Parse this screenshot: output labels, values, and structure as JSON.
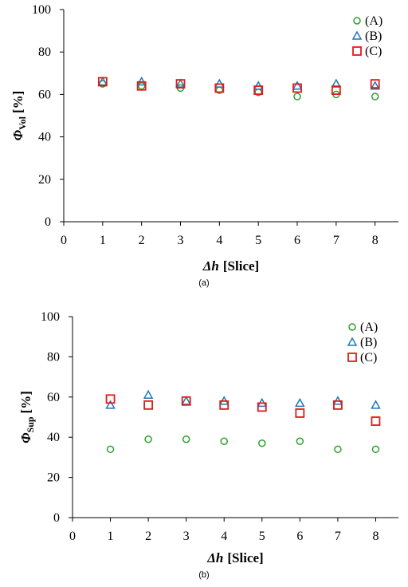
{
  "chart_data": [
    {
      "type": "scatter",
      "panel_label": "(a)",
      "ylabel_symbol": "Φ",
      "ylabel_subscript": "Vol",
      "ylabel_unit": "[%]",
      "xlabel_symbol": "Δh",
      "xlabel_unit": "[Slice]",
      "xlim": [
        0,
        8.6
      ],
      "ylim": [
        0,
        100
      ],
      "xticks": [
        "0",
        "1",
        "2",
        "3",
        "4",
        "5",
        "6",
        "7",
        "8"
      ],
      "yticks": [
        "0",
        "20",
        "40",
        "60",
        "80",
        "100"
      ],
      "grid": false,
      "legend_position": "top-right",
      "x": [
        1,
        2,
        3,
        4,
        5,
        6,
        7,
        8
      ],
      "series": [
        {
          "name": "(A)",
          "marker": "circle",
          "color": "#2ca02c",
          "values": [
            65,
            64,
            63,
            62,
            61,
            59,
            60,
            59
          ]
        },
        {
          "name": "(B)",
          "marker": "triangle",
          "color": "#1f77b4",
          "values": [
            66,
            66,
            65,
            65,
            64,
            64,
            65,
            64
          ]
        },
        {
          "name": "(C)",
          "marker": "square",
          "color": "#e31a1c",
          "values": [
            66,
            64,
            65,
            63,
            62,
            63,
            62,
            65
          ]
        }
      ]
    },
    {
      "type": "scatter",
      "panel_label": "(b)",
      "ylabel_symbol": "Φ",
      "ylabel_subscript": "Sup",
      "ylabel_unit": "[%]",
      "xlabel_symbol": "Δh",
      "xlabel_unit": "[Slice]",
      "xlim": [
        0,
        8.6
      ],
      "ylim": [
        0,
        100
      ],
      "xticks": [
        "0",
        "1",
        "2",
        "3",
        "4",
        "5",
        "6",
        "7",
        "8"
      ],
      "yticks": [
        "0",
        "20",
        "40",
        "60",
        "80",
        "100"
      ],
      "grid": false,
      "legend_position": "top-right",
      "x": [
        1,
        2,
        3,
        4,
        5,
        6,
        7,
        8
      ],
      "series": [
        {
          "name": "(A)",
          "marker": "circle",
          "color": "#2ca02c",
          "values": [
            34,
            39,
            39,
            38,
            37,
            38,
            34,
            34
          ]
        },
        {
          "name": "(B)",
          "marker": "triangle",
          "color": "#1f77b4",
          "values": [
            56,
            61,
            58,
            58,
            57,
            57,
            58,
            56
          ]
        },
        {
          "name": "(C)",
          "marker": "square",
          "color": "#e31a1c",
          "values": [
            59,
            56,
            58,
            56,
            55,
            52,
            56,
            48
          ]
        }
      ]
    }
  ]
}
